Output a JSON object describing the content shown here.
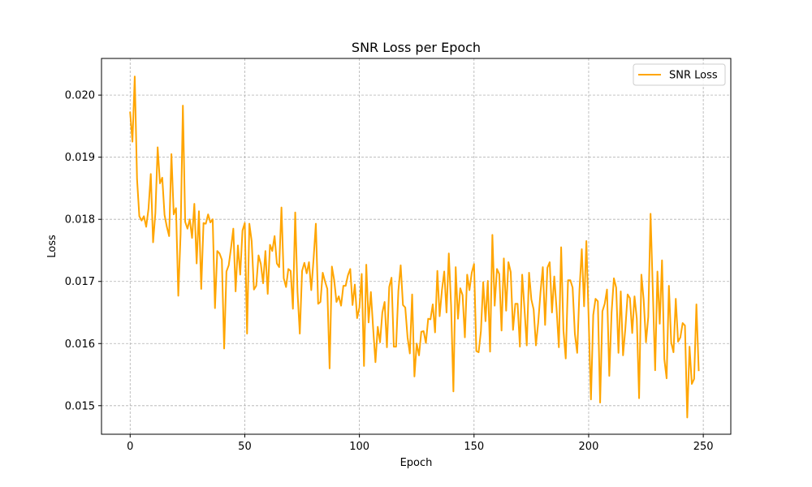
{
  "chart_data": {
    "type": "line",
    "title": "SNR Loss per Epoch",
    "xlabel": "Epoch",
    "ylabel": "Loss",
    "xlim": [
      -12.5,
      262
    ],
    "ylim": [
      0.01454,
      0.02059
    ],
    "xticks": [
      0,
      50,
      100,
      150,
      200,
      250
    ],
    "yticks": [
      0.015,
      0.016,
      0.017,
      0.018,
      0.019,
      0.02
    ],
    "ytick_labels": [
      "0.015",
      "0.016",
      "0.017",
      "0.018",
      "0.019",
      "0.020"
    ],
    "grid": true,
    "legend": "upper right",
    "series": [
      {
        "name": "SNR Loss",
        "color": "#FFA500",
        "x_start": 0,
        "x_step": 1,
        "values": [
          0.01972,
          0.01925,
          0.0203,
          0.01865,
          0.01805,
          0.01798,
          0.01805,
          0.01788,
          0.01817,
          0.01873,
          0.01763,
          0.0181,
          0.01916,
          0.01858,
          0.01867,
          0.01807,
          0.01788,
          0.01773,
          0.01905,
          0.01808,
          0.01818,
          0.01677,
          0.01776,
          0.01983,
          0.01796,
          0.01785,
          0.018,
          0.0177,
          0.01825,
          0.01729,
          0.01813,
          0.01688,
          0.01794,
          0.01793,
          0.01808,
          0.01795,
          0.018,
          0.01657,
          0.01749,
          0.01745,
          0.01735,
          0.01592,
          0.01716,
          0.01726,
          0.01754,
          0.01785,
          0.01684,
          0.01758,
          0.01711,
          0.01782,
          0.01794,
          0.01616,
          0.01793,
          0.01765,
          0.01687,
          0.01693,
          0.01742,
          0.01728,
          0.01697,
          0.01749,
          0.0168,
          0.01759,
          0.01749,
          0.01773,
          0.01729,
          0.01723,
          0.01819,
          0.01705,
          0.01691,
          0.0172,
          0.01717,
          0.01656,
          0.01811,
          0.01683,
          0.01616,
          0.01717,
          0.0173,
          0.01713,
          0.01731,
          0.01686,
          0.01736,
          0.01793,
          0.01664,
          0.01667,
          0.01714,
          0.017,
          0.01688,
          0.0156,
          0.01724,
          0.01702,
          0.01667,
          0.01676,
          0.01661,
          0.01693,
          0.01693,
          0.0171,
          0.0172,
          0.01662,
          0.01695,
          0.01641,
          0.01658,
          0.01712,
          0.01564,
          0.01727,
          0.01634,
          0.01683,
          0.01624,
          0.0157,
          0.01627,
          0.01602,
          0.0165,
          0.01667,
          0.01594,
          0.01691,
          0.01706,
          0.01595,
          0.01595,
          0.01685,
          0.01726,
          0.01662,
          0.01658,
          0.0161,
          0.01584,
          0.01679,
          0.01547,
          0.016,
          0.01581,
          0.01619,
          0.0162,
          0.01601,
          0.0164,
          0.01639,
          0.01663,
          0.01618,
          0.01717,
          0.01644,
          0.01686,
          0.01716,
          0.0165,
          0.01745,
          0.0166,
          0.01523,
          0.01723,
          0.0164,
          0.01689,
          0.01678,
          0.0161,
          0.01711,
          0.01686,
          0.01714,
          0.01728,
          0.01588,
          0.01586,
          0.0162,
          0.01699,
          0.01636,
          0.01701,
          0.01587,
          0.01775,
          0.01661,
          0.0172,
          0.01712,
          0.01621,
          0.01737,
          0.01653,
          0.01731,
          0.01715,
          0.01622,
          0.01664,
          0.01664,
          0.01595,
          0.01711,
          0.01656,
          0.01597,
          0.01714,
          0.01671,
          0.01655,
          0.01597,
          0.01634,
          0.01683,
          0.01723,
          0.0163,
          0.01722,
          0.01731,
          0.0165,
          0.01708,
          0.01656,
          0.01594,
          0.01755,
          0.01621,
          0.01576,
          0.01702,
          0.01702,
          0.0169,
          0.01615,
          0.01585,
          0.01687,
          0.01752,
          0.0166,
          0.01765,
          0.0164,
          0.0151,
          0.01646,
          0.01672,
          0.01668,
          0.01505,
          0.01652,
          0.01664,
          0.01687,
          0.01548,
          0.0165,
          0.01705,
          0.0169,
          0.01585,
          0.01684,
          0.01581,
          0.01624,
          0.01679,
          0.01673,
          0.01617,
          0.01676,
          0.0164,
          0.01512,
          0.01711,
          0.0167,
          0.01602,
          0.01643,
          0.01809,
          0.01683,
          0.01557,
          0.01716,
          0.01632,
          0.01734,
          0.01575,
          0.01544,
          0.01693,
          0.01602,
          0.01586,
          0.01672,
          0.01603,
          0.0161,
          0.01633,
          0.01629,
          0.01481,
          0.01595,
          0.01535,
          0.01543,
          0.01663,
          0.01557
        ]
      }
    ]
  }
}
